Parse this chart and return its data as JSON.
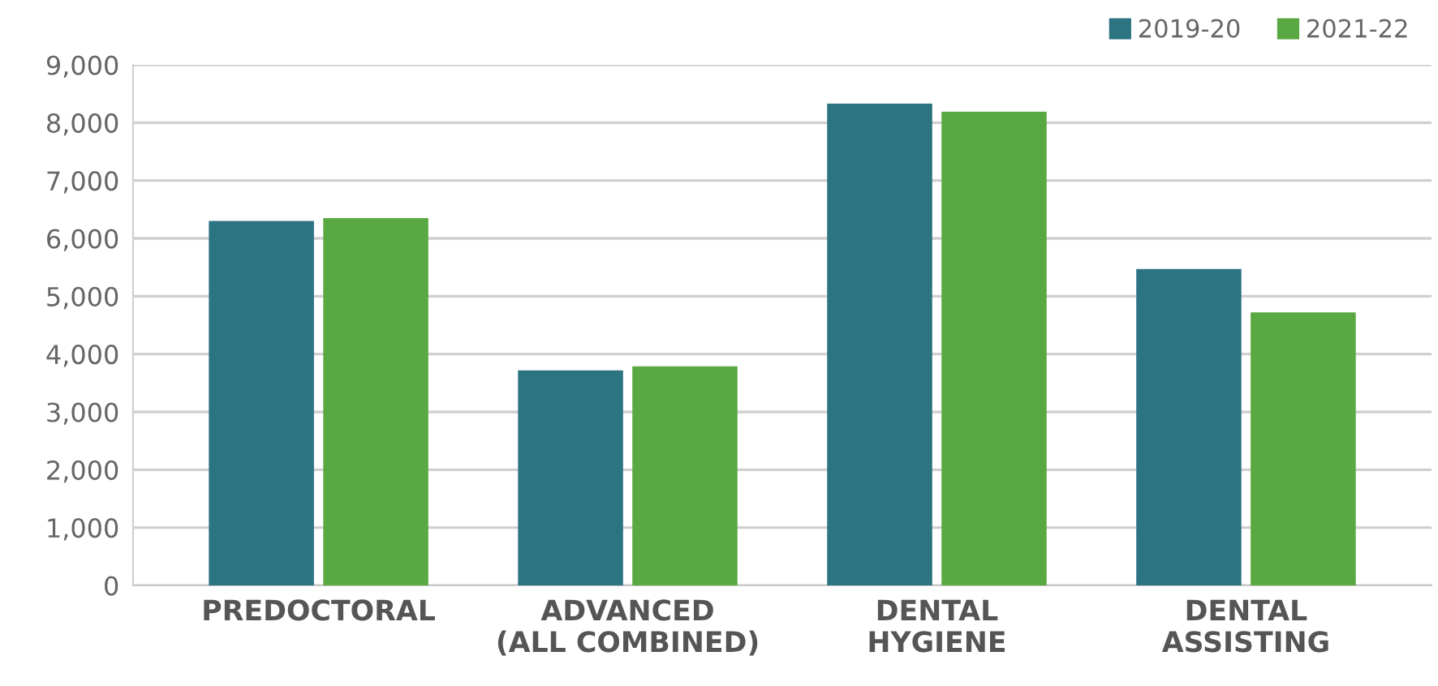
{
  "chart_data": {
    "type": "bar",
    "categories": [
      "PREDOCTORAL",
      "ADVANCED\n(ALL COMBINED)",
      "DENTAL\nHYGIENE",
      "DENTAL\nASSISTING"
    ],
    "series": [
      {
        "name": "2019-20",
        "color": "#2d7483",
        "values": [
          6300,
          3720,
          8330,
          5470
        ]
      },
      {
        "name": "2021-22",
        "color": "#5aa842",
        "values": [
          6350,
          3790,
          8190,
          4720
        ]
      }
    ],
    "ylim": [
      0,
      9000
    ],
    "yticks": [
      {
        "value": 0,
        "label": "0"
      },
      {
        "value": 1000,
        "label": "1,000"
      },
      {
        "value": 2000,
        "label": "2,000"
      },
      {
        "value": 3000,
        "label": "3,000"
      },
      {
        "value": 4000,
        "label": "4,000"
      },
      {
        "value": 5000,
        "label": "5,000"
      },
      {
        "value": 6000,
        "label": "6,000"
      },
      {
        "value": 7000,
        "label": "7,000"
      },
      {
        "value": 8000,
        "label": "8,000"
      },
      {
        "value": 9000,
        "label": "9,000"
      }
    ],
    "grid": "y",
    "legend": "top right"
  }
}
